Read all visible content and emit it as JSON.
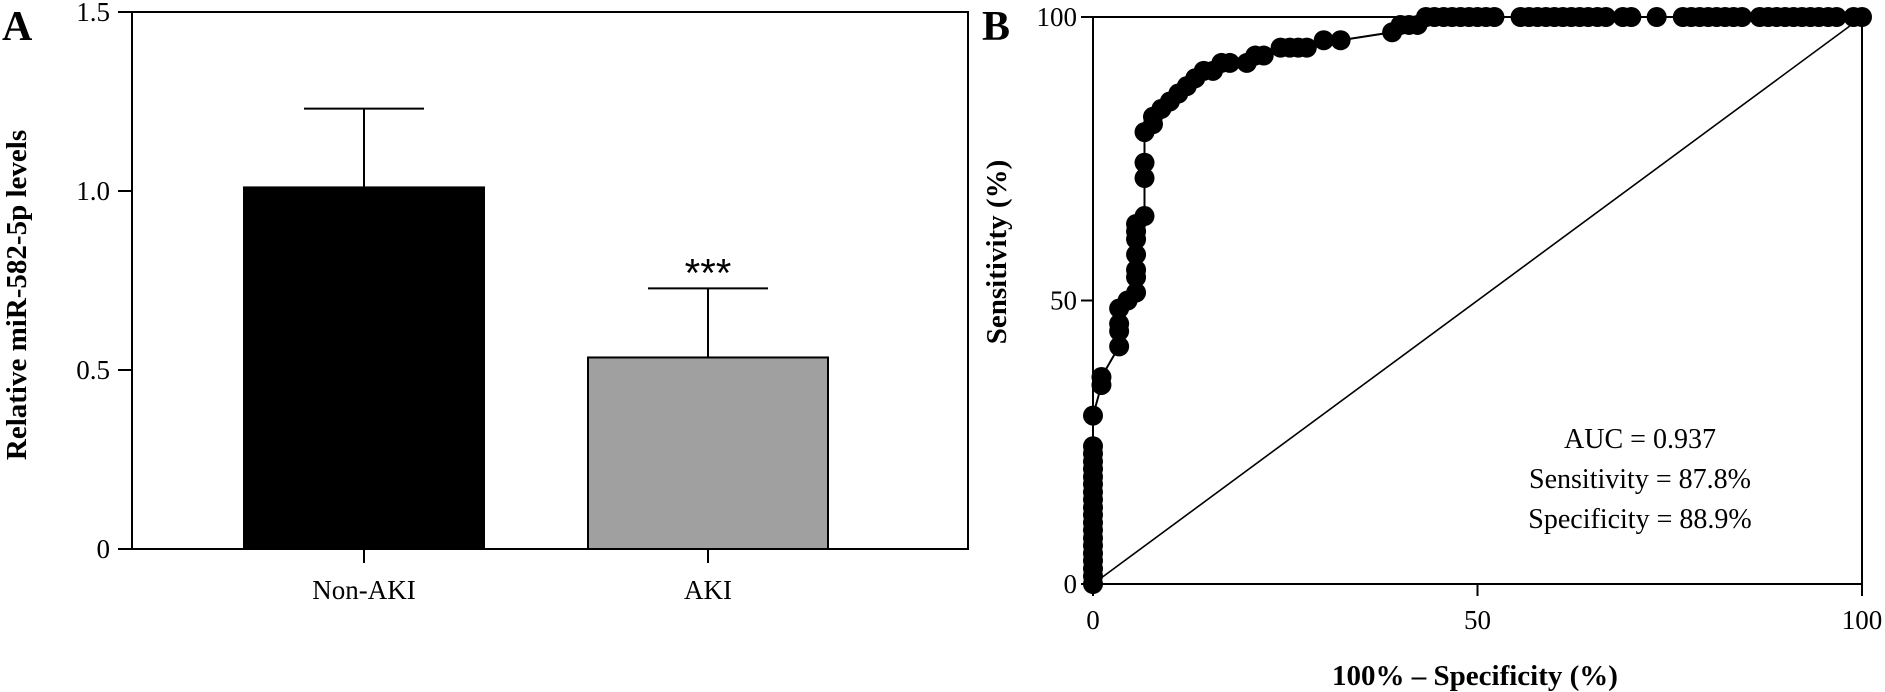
{
  "chart_data": [
    {
      "type": "bar",
      "panel_label": "A",
      "categories": [
        "Non-AKI",
        "AKI"
      ],
      "values": [
        1.01,
        0.535
      ],
      "error_upper": [
        1.23,
        0.728
      ],
      "colors": [
        "#000000",
        "#a0a0a0"
      ],
      "significance": [
        "",
        "***"
      ],
      "ylabel": "Relative miR-582-5p levels",
      "ylim": [
        0,
        1.5
      ],
      "yticks": [
        0,
        0.5,
        1.0,
        1.5
      ],
      "ytick_labels": [
        "0",
        "0.5",
        "1.0",
        "1.5"
      ],
      "grid": false
    },
    {
      "type": "line",
      "subtype": "roc",
      "panel_label": "B",
      "xlabel": "100% – Specificity (%)",
      "ylabel": "Sensitivity (%)",
      "xlim": [
        0,
        100
      ],
      "ylim": [
        0,
        100
      ],
      "xticks": [
        0,
        50,
        100
      ],
      "yticks": [
        0,
        50,
        100
      ],
      "xtick_labels": [
        "0",
        "50",
        "100"
      ],
      "ytick_labels": [
        "0",
        "50",
        "100"
      ],
      "grid": false,
      "reference_line": [
        [
          0,
          0
        ],
        [
          100,
          100
        ]
      ],
      "annotations": [
        "AUC = 0.937",
        "Sensitivity = 87.8%",
        "Specificity = 88.9%"
      ],
      "series": [
        {
          "x": [
            0,
            0,
            0,
            0,
            0,
            0,
            0,
            0,
            0,
            0,
            0,
            0,
            0,
            0,
            0,
            0,
            0,
            0,
            0,
            0,
            1.1,
            1.1,
            3.4,
            3.4,
            3.4,
            3.4,
            4.5,
            5.6,
            5.6,
            5.6,
            5.6,
            5.6,
            5.6,
            5.6,
            6.7,
            6.7,
            6.7,
            6.7,
            7.8,
            7.8,
            8.9,
            10,
            11.1,
            12.2,
            13.3,
            14.4,
            15.6,
            16.7,
            17.8,
            20,
            21.1,
            22.2,
            24.4,
            25.6,
            26.7,
            27.8,
            30,
            32.2,
            38.9,
            40,
            41.1,
            42.2,
            43.3,
            44.4,
            45.6,
            46.7,
            47.8,
            48.9,
            50,
            51.1,
            52.2,
            55.6,
            56.7,
            57.8,
            58.9,
            60,
            61.1,
            62.2,
            63.3,
            64.4,
            65.6,
            66.7,
            68.9,
            70,
            73.3,
            76.7,
            77.8,
            78.9,
            80,
            81.1,
            82.2,
            83.3,
            84.4,
            86.7,
            87.8,
            88.9,
            90,
            91.1,
            92.2,
            93.3,
            94.4,
            95.6,
            96.7,
            98.9,
            100
          ],
          "y": [
            0,
            1.4,
            2.7,
            4.1,
            5.4,
            6.8,
            8.1,
            9.5,
            10.8,
            12.2,
            13.5,
            14.9,
            16.2,
            17.6,
            18.9,
            20.3,
            21.6,
            23,
            24.3,
            29.7,
            35.1,
            36.5,
            41.9,
            44.6,
            45.9,
            48.6,
            50,
            51.4,
            54.1,
            55.4,
            58.1,
            60.8,
            62.2,
            63.5,
            64.9,
            71.6,
            74.3,
            79.7,
            81.1,
            82.4,
            83.8,
            85.1,
            86.5,
            87.8,
            89.2,
            90.5,
            90.5,
            91.9,
            91.9,
            91.9,
            93.2,
            93.2,
            94.6,
            94.6,
            94.6,
            94.6,
            95.9,
            95.9,
            97.3,
            98.6,
            98.6,
            98.6,
            100,
            100,
            100,
            100,
            100,
            100,
            100,
            100,
            100,
            100,
            100,
            100,
            100,
            100,
            100,
            100,
            100,
            100,
            100,
            100,
            100,
            100,
            100,
            100,
            100,
            100,
            100,
            100,
            100,
            100,
            100,
            100,
            100,
            100,
            100,
            100,
            100,
            100,
            100,
            100,
            100,
            100,
            100
          ]
        }
      ]
    }
  ]
}
